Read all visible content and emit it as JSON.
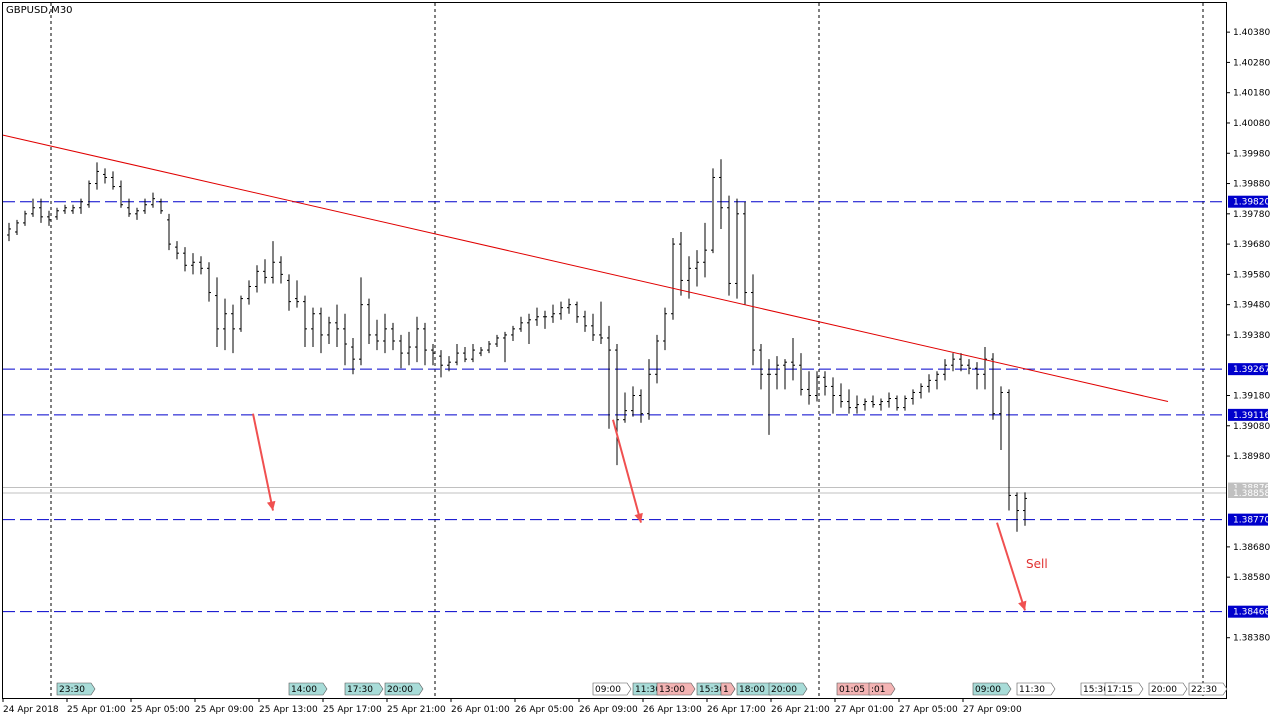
{
  "window": {
    "symbol_timeframe": "GBPUSD,M30"
  },
  "annotations": {
    "sell_label": "Sell"
  },
  "colors": {
    "background": "#ffffff",
    "grid": "#000000",
    "candles": "#000000",
    "trendline": "#e00000",
    "levels": "#0000cc",
    "arrows": "#f05050",
    "level_tag_bg": "#0000cc",
    "level_tag_text": "#ffffff",
    "bid_ask_lines": "#c0c0c0",
    "marker_teal": "#a8dcd8",
    "marker_pink": "#f4b4b4"
  },
  "chart_data": {
    "type": "candlestick",
    "title": "GBPUSD,M30",
    "ylim": [
      1.3828,
      1.4043
    ],
    "y_ticks": [
      "1.40380",
      "1.40280",
      "1.40180",
      "1.40080",
      "1.39980",
      "1.39880",
      "1.39780",
      "1.39680",
      "1.39580",
      "1.39480",
      "1.39380",
      "1.39180",
      "1.39080",
      "1.38980",
      "1.38680",
      "1.38580",
      "1.38380"
    ],
    "x_ticks": [
      "24 Apr 2018",
      "25 Apr 01:00",
      "25 Apr 05:00",
      "25 Apr 09:00",
      "25 Apr 13:00",
      "25 Apr 17:00",
      "25 Apr 21:00",
      "26 Apr 01:00",
      "26 Apr 05:00",
      "26 Apr 09:00",
      "26 Apr 13:00",
      "26 Apr 17:00",
      "26 Apr 21:00",
      "27 Apr 01:00",
      "27 Apr 05:00",
      "27 Apr 09:00"
    ],
    "horizontal_levels": [
      {
        "value": 1.3982,
        "label": "1.39820"
      },
      {
        "value": 1.39267,
        "label": "1.39267"
      },
      {
        "value": 1.39116,
        "label": "1.39116"
      },
      {
        "value": 1.3877,
        "label": "1.38770"
      },
      {
        "value": 1.38466,
        "label": "1.38466"
      }
    ],
    "bid_ask": [
      {
        "value": 1.38876,
        "label": "1.38876"
      },
      {
        "value": 1.38858,
        "label": "1.38858"
      }
    ],
    "trendline": {
      "from": {
        "bar": 0,
        "price": 1.4004
      },
      "to": {
        "bar": 290,
        "price": 1.3916
      }
    },
    "arrows": [
      {
        "from": {
          "bar": 62,
          "price": 1.3912
        },
        "to": {
          "bar": 67,
          "price": 1.388
        }
      },
      {
        "from": {
          "bar": 152,
          "price": 1.391
        },
        "to": {
          "bar": 159,
          "price": 1.3876
        }
      },
      {
        "from": {
          "bar": 248,
          "price": 1.3876
        },
        "to": {
          "bar": 255,
          "price": 1.3847
        }
      }
    ],
    "sell_annotation": {
      "bar": 256,
      "price": 1.3868
    },
    "event_markers": [
      {
        "label": "23:30",
        "bar": 13,
        "style": "teal"
      },
      {
        "label": "14:00",
        "bar": 71,
        "style": "teal"
      },
      {
        "label": "17:30",
        "bar": 85,
        "style": "teal"
      },
      {
        "label": "20:00",
        "bar": 95,
        "style": "teal"
      },
      {
        "label": "09:00",
        "bar": 147,
        "style": "white"
      },
      {
        "label": "11:30",
        "bar": 157,
        "style": "teal"
      },
      {
        "label": "13:00",
        "bar": 163,
        "style": "pink"
      },
      {
        "label": "15:30",
        "bar": 173,
        "style": "teal"
      },
      {
        "label": "1",
        "bar": 179,
        "style": "pink"
      },
      {
        "label": "18:00",
        "bar": 183,
        "style": "teal"
      },
      {
        "label": "20:00",
        "bar": 191,
        "style": "teal"
      },
      {
        "label": "01:05",
        "bar": 208,
        "style": "pink"
      },
      {
        "label": ":01",
        "bar": 216,
        "style": "pink"
      },
      {
        "label": "09:00",
        "bar": 242,
        "style": "teal"
      },
      {
        "label": "11:30",
        "bar": 253,
        "style": "white"
      },
      {
        "label": "15:30",
        "bar": 269,
        "style": "white"
      },
      {
        "label": "17:15",
        "bar": 275,
        "style": "white"
      },
      {
        "label": "20:00",
        "bar": 286,
        "style": "white"
      },
      {
        "label": "22:30",
        "bar": 296,
        "style": "white"
      }
    ],
    "vertical_separators": [
      12,
      108,
      204,
      300
    ],
    "candles": [
      [
        1.3971,
        1.3975,
        1.3969,
        1.3973
      ],
      [
        1.3972,
        1.3976,
        1.3971,
        1.3975
      ],
      [
        1.3975,
        1.3979,
        1.3974,
        1.3978
      ],
      [
        1.3978,
        1.3983,
        1.3977,
        1.398
      ],
      [
        1.398,
        1.3983,
        1.3975,
        1.3977
      ],
      [
        1.3977,
        1.3979,
        1.3974,
        1.3976
      ],
      [
        1.3977,
        1.398,
        1.3976,
        1.3979
      ],
      [
        1.3979,
        1.3981,
        1.3978,
        1.398
      ],
      [
        1.3979,
        1.3981,
        1.3978,
        1.398
      ],
      [
        1.398,
        1.3983,
        1.3978,
        1.3982
      ],
      [
        1.3981,
        1.3989,
        1.398,
        1.3988
      ],
      [
        1.3988,
        1.3995,
        1.3986,
        1.3992
      ],
      [
        1.3991,
        1.3993,
        1.3988,
        1.399
      ],
      [
        1.399,
        1.3992,
        1.3986,
        1.3987
      ],
      [
        1.3987,
        1.3989,
        1.398,
        1.3981
      ],
      [
        1.398,
        1.3983,
        1.3977,
        1.3978
      ],
      [
        1.3978,
        1.398,
        1.3976,
        1.3979
      ],
      [
        1.3979,
        1.3983,
        1.3978,
        1.3981
      ],
      [
        1.3981,
        1.3985,
        1.398,
        1.3983
      ],
      [
        1.3982,
        1.3983,
        1.3978,
        1.3979
      ],
      [
        1.3976,
        1.3978,
        1.3966,
        1.3968
      ],
      [
        1.3967,
        1.3969,
        1.3963,
        1.3965
      ],
      [
        1.3965,
        1.3967,
        1.3959,
        1.3961
      ],
      [
        1.3961,
        1.3965,
        1.3958,
        1.3962
      ],
      [
        1.3962,
        1.3964,
        1.3958,
        1.396
      ],
      [
        1.396,
        1.3962,
        1.3949,
        1.3952
      ],
      [
        1.3951,
        1.3957,
        1.3934,
        1.394
      ],
      [
        1.394,
        1.395,
        1.3933,
        1.3945
      ],
      [
        1.3945,
        1.3948,
        1.3932,
        1.394
      ],
      [
        1.394,
        1.3951,
        1.3939,
        1.395
      ],
      [
        1.395,
        1.3956,
        1.3948,
        1.3954
      ],
      [
        1.3954,
        1.3961,
        1.3952,
        1.3959
      ],
      [
        1.3959,
        1.3963,
        1.3955,
        1.3957
      ],
      [
        1.3957,
        1.3969,
        1.3955,
        1.3962
      ],
      [
        1.3962,
        1.3964,
        1.3955,
        1.3958
      ],
      [
        1.3956,
        1.3958,
        1.3946,
        1.3949
      ],
      [
        1.395,
        1.3956,
        1.3947,
        1.3949
      ],
      [
        1.3949,
        1.3951,
        1.3934,
        1.394
      ],
      [
        1.394,
        1.3947,
        1.3934,
        1.3945
      ],
      [
        1.3945,
        1.3947,
        1.3932,
        1.3938
      ],
      [
        1.3938,
        1.3944,
        1.3935,
        1.3942
      ],
      [
        1.3942,
        1.3948,
        1.3934,
        1.394
      ],
      [
        1.394,
        1.3945,
        1.3928,
        1.3935
      ],
      [
        1.3934,
        1.3937,
        1.3925,
        1.393
      ],
      [
        1.393,
        1.3957,
        1.3928,
        1.3948
      ],
      [
        1.3948,
        1.395,
        1.3935,
        1.3938
      ],
      [
        1.3938,
        1.3943,
        1.3933,
        1.3936
      ],
      [
        1.3936,
        1.3945,
        1.3932,
        1.394
      ],
      [
        1.394,
        1.3942,
        1.3933,
        1.3936
      ],
      [
        1.3936,
        1.3938,
        1.3927,
        1.3932
      ],
      [
        1.3932,
        1.3939,
        1.3928,
        1.3934
      ],
      [
        1.3934,
        1.3944,
        1.3929,
        1.394
      ],
      [
        1.394,
        1.3942,
        1.3928,
        1.3933
      ],
      [
        1.3933,
        1.3935,
        1.3928,
        1.3932
      ],
      [
        1.3931,
        1.3933,
        1.3924,
        1.3928
      ],
      [
        1.3928,
        1.3931,
        1.3926,
        1.3929
      ],
      [
        1.3929,
        1.3935,
        1.3928,
        1.3932
      ],
      [
        1.3932,
        1.3934,
        1.3929,
        1.393
      ],
      [
        1.393,
        1.3935,
        1.3929,
        1.3933
      ],
      [
        1.3932,
        1.3934,
        1.3931,
        1.3933
      ],
      [
        1.3933,
        1.3936,
        1.3932,
        1.3935
      ],
      [
        1.3935,
        1.3938,
        1.3934,
        1.3937
      ],
      [
        1.3937,
        1.3939,
        1.3929,
        1.3938
      ],
      [
        1.3938,
        1.3941,
        1.3936,
        1.394
      ],
      [
        1.394,
        1.3944,
        1.3939,
        1.3942
      ],
      [
        1.3942,
        1.3945,
        1.3935,
        1.3943
      ],
      [
        1.3943,
        1.3947,
        1.3941,
        1.3944
      ],
      [
        1.3944,
        1.3946,
        1.394,
        1.3944
      ],
      [
        1.3944,
        1.3948,
        1.3942,
        1.3945
      ],
      [
        1.3945,
        1.3949,
        1.3943,
        1.3947
      ],
      [
        1.3947,
        1.395,
        1.3945,
        1.3948
      ],
      [
        1.3948,
        1.3949,
        1.3942,
        1.3944
      ],
      [
        1.3944,
        1.3946,
        1.3939,
        1.3941
      ],
      [
        1.3941,
        1.3945,
        1.3936,
        1.3938
      ],
      [
        1.3938,
        1.3949,
        1.3935,
        1.3937
      ],
      [
        1.3937,
        1.3941,
        1.3907,
        1.3933
      ],
      [
        1.3933,
        1.3935,
        1.3895,
        1.391
      ],
      [
        1.391,
        1.3919,
        1.3909,
        1.3913
      ],
      [
        1.3913,
        1.3921,
        1.3911,
        1.3918
      ],
      [
        1.3918,
        1.392,
        1.3909,
        1.3912
      ],
      [
        1.3912,
        1.393,
        1.391,
        1.3925
      ],
      [
        1.3925,
        1.3938,
        1.3922,
        1.3936
      ],
      [
        1.3936,
        1.3947,
        1.3933,
        1.3945
      ],
      [
        1.3945,
        1.397,
        1.3943,
        1.3968
      ],
      [
        1.3968,
        1.3972,
        1.3951,
        1.3956
      ],
      [
        1.3956,
        1.3964,
        1.395,
        1.396
      ],
      [
        1.396,
        1.3966,
        1.3954,
        1.3962
      ],
      [
        1.3962,
        1.3975,
        1.3957,
        1.3966
      ],
      [
        1.3966,
        1.3993,
        1.3965,
        1.399
      ],
      [
        1.399,
        1.3996,
        1.3973,
        1.398
      ],
      [
        1.398,
        1.3984,
        1.3951,
        1.3955
      ],
      [
        1.3955,
        1.3983,
        1.395,
        1.3978
      ],
      [
        1.3978,
        1.3982,
        1.3948,
        1.3952
      ],
      [
        1.3952,
        1.3958,
        1.3928,
        1.3933
      ],
      [
        1.3933,
        1.3935,
        1.392,
        1.3925
      ],
      [
        1.3925,
        1.393,
        1.3905,
        1.3925
      ],
      [
        1.3925,
        1.3931,
        1.392,
        1.3928
      ],
      [
        1.3928,
        1.393,
        1.392,
        1.3929
      ],
      [
        1.3929,
        1.3937,
        1.3923,
        1.3928
      ],
      [
        1.3928,
        1.3932,
        1.3918,
        1.392
      ],
      [
        1.392,
        1.3926,
        1.3915,
        1.3918
      ],
      [
        1.3918,
        1.3926,
        1.3916,
        1.3924
      ],
      [
        1.3924,
        1.3926,
        1.3918,
        1.3921
      ],
      [
        1.3921,
        1.3924,
        1.3912,
        1.3918
      ],
      [
        1.3918,
        1.3922,
        1.3914,
        1.3916
      ],
      [
        1.3916,
        1.392,
        1.3912,
        1.3914
      ],
      [
        1.3914,
        1.3918,
        1.3912,
        1.3915
      ],
      [
        1.3915,
        1.3917,
        1.3913,
        1.3916
      ],
      [
        1.3916,
        1.3918,
        1.3914,
        1.3915
      ],
      [
        1.3915,
        1.3917,
        1.3913,
        1.3916
      ],
      [
        1.3916,
        1.3919,
        1.3914,
        1.3917
      ],
      [
        1.3917,
        1.3918,
        1.3913,
        1.3914
      ],
      [
        1.3914,
        1.3918,
        1.3913,
        1.3917
      ],
      [
        1.3917,
        1.392,
        1.3915,
        1.3919
      ],
      [
        1.3919,
        1.3922,
        1.3917,
        1.3921
      ],
      [
        1.3921,
        1.3925,
        1.3919,
        1.3923
      ],
      [
        1.3923,
        1.3926,
        1.392,
        1.3925
      ],
      [
        1.3925,
        1.393,
        1.3923,
        1.3928
      ],
      [
        1.3928,
        1.3932,
        1.3926,
        1.393
      ],
      [
        1.393,
        1.3932,
        1.3926,
        1.3928
      ],
      [
        1.3928,
        1.393,
        1.3925,
        1.3927
      ],
      [
        1.3927,
        1.3929,
        1.392,
        1.3925
      ],
      [
        1.3925,
        1.3934,
        1.392,
        1.393
      ],
      [
        1.393,
        1.3932,
        1.391,
        1.3912
      ],
      [
        1.3912,
        1.3921,
        1.39,
        1.3919
      ],
      [
        1.3919,
        1.392,
        1.388,
        1.3885
      ],
      [
        1.3885,
        1.3886,
        1.3873,
        1.388
      ],
      [
        1.388,
        1.3886,
        1.3875,
        1.3884
      ]
    ],
    "candle_start_bar": 0,
    "candle_bar_step": 2
  }
}
